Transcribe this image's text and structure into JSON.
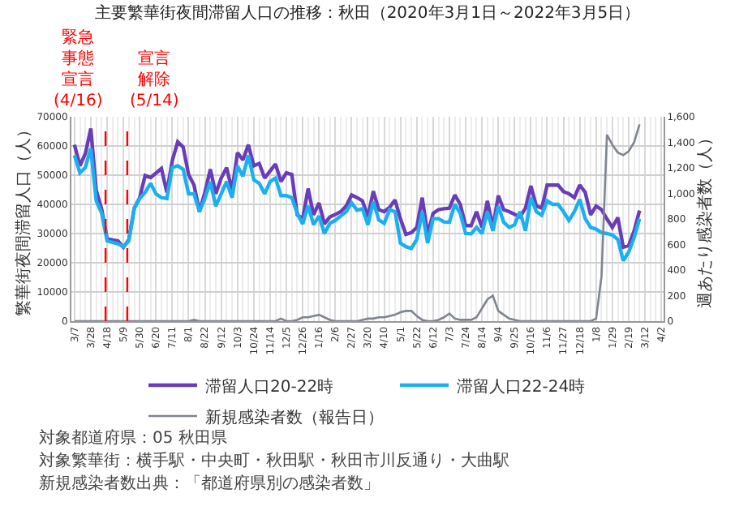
{
  "chart_data": {
    "type": "line",
    "title": "主要繁華街夜間滞留人口の推移：秋田（2020年3月1日～2022年3月5日）",
    "ylabel": "繁華街夜間滞留人口（人）",
    "y2label": "週あたり感染者数（人）",
    "x": [
      "2020-03-07",
      "2020-03-14",
      "2020-03-21",
      "2020-03-28",
      "2020-04-04",
      "2020-04-11",
      "2020-04-18",
      "2020-04-25",
      "2020-05-02",
      "2020-05-09",
      "2020-05-16",
      "2020-05-23",
      "2020-05-30",
      "2020-06-06",
      "2020-06-13",
      "2020-06-20",
      "2020-06-27",
      "2020-07-04",
      "2020-07-11",
      "2020-07-18",
      "2020-07-25",
      "2020-08-01",
      "2020-08-08",
      "2020-08-15",
      "2020-08-22",
      "2020-08-29",
      "2020-09-05",
      "2020-09-12",
      "2020-09-19",
      "2020-09-26",
      "2020-10-03",
      "2020-10-10",
      "2020-10-17",
      "2020-10-24",
      "2020-10-31",
      "2020-11-07",
      "2020-11-14",
      "2020-11-21",
      "2020-11-28",
      "2020-12-05",
      "2020-12-12",
      "2020-12-19",
      "2020-12-26",
      "2021-01-02",
      "2021-01-09",
      "2021-01-16",
      "2021-01-23",
      "2021-01-30",
      "2021-02-06",
      "2021-02-13",
      "2021-02-20",
      "2021-02-27",
      "2021-03-06",
      "2021-03-13",
      "2021-03-20",
      "2021-03-27",
      "2021-04-03",
      "2021-04-10",
      "2021-04-17",
      "2021-04-24",
      "2021-05-01",
      "2021-05-08",
      "2021-05-15",
      "2021-05-22",
      "2021-05-29",
      "2021-06-05",
      "2021-06-12",
      "2021-06-19",
      "2021-06-26",
      "2021-07-03",
      "2021-07-10",
      "2021-07-17",
      "2021-07-24",
      "2021-07-31",
      "2021-08-07",
      "2021-08-14",
      "2021-08-21",
      "2021-08-28",
      "2021-09-04",
      "2021-09-11",
      "2021-09-18",
      "2021-09-25",
      "2021-10-02",
      "2021-10-09",
      "2021-10-16",
      "2021-10-23",
      "2021-10-30",
      "2021-11-06",
      "2021-11-13",
      "2021-11-20",
      "2021-11-27",
      "2021-12-04",
      "2021-12-11",
      "2021-12-18",
      "2021-12-25",
      "2022-01-01",
      "2022-01-08",
      "2022-01-15",
      "2022-01-22",
      "2022-01-29",
      "2022-02-05",
      "2022-02-12",
      "2022-02-19",
      "2022-02-26",
      "2022-03-05"
    ],
    "series": [
      {
        "name": "滞留人口20-22時",
        "color": "#6a3db8",
        "values": [
          60400,
          53200,
          57400,
          66000,
          44800,
          38300,
          28200,
          27800,
          27500,
          25300,
          27900,
          38700,
          42300,
          49900,
          49200,
          50700,
          52300,
          44100,
          55000,
          61400,
          59600,
          50200,
          46600,
          37500,
          44100,
          52000,
          43600,
          49000,
          52600,
          44800,
          57700,
          55200,
          60400,
          53200,
          54000,
          49000,
          51400,
          53800,
          47800,
          50800,
          50200,
          36400,
          35100,
          45400,
          36400,
          40500,
          33300,
          35700,
          36500,
          37500,
          39400,
          43200,
          42300,
          41200,
          35700,
          44500,
          38200,
          37500,
          39000,
          41500,
          35000,
          29700,
          30300,
          32100,
          42300,
          29700,
          36900,
          38200,
          38500,
          38700,
          43200,
          40000,
          32700,
          32700,
          37500,
          32100,
          41200,
          32100,
          43000,
          38200,
          37500,
          36600,
          35700,
          38700,
          46300,
          39400,
          38700,
          46600,
          46600,
          46600,
          44400,
          43600,
          42300,
          46600,
          44100,
          36400,
          39400,
          38200,
          35000,
          32100,
          35500,
          25300,
          25900,
          30900,
          37900
        ]
      },
      {
        "name": "滞留人口22-24時",
        "color": "#1ab0f0",
        "values": [
          56800,
          50800,
          52600,
          59200,
          41200,
          37000,
          27500,
          27000,
          26500,
          25500,
          27500,
          38700,
          42000,
          44100,
          47200,
          43600,
          42300,
          42000,
          52600,
          53200,
          52000,
          43600,
          43600,
          37500,
          42000,
          47800,
          39400,
          43600,
          47800,
          42300,
          53200,
          49600,
          56800,
          48400,
          47200,
          43600,
          47800,
          49000,
          43000,
          43000,
          42300,
          36900,
          33300,
          39500,
          33000,
          36000,
          30000,
          33500,
          34500,
          36000,
          37500,
          40500,
          38000,
          38500,
          33000,
          41000,
          34700,
          33500,
          38200,
          37500,
          26700,
          25500,
          24900,
          28000,
          37500,
          26700,
          35100,
          35100,
          34000,
          33900,
          40000,
          36900,
          30000,
          29900,
          32100,
          30000,
          37500,
          30900,
          39400,
          33900,
          32100,
          33000,
          37500,
          30900,
          42300,
          37500,
          36300,
          41200,
          40000,
          40000,
          37500,
          34500,
          37500,
          41700,
          35100,
          32100,
          31500,
          30300,
          30000,
          29500,
          28000,
          20700,
          23700,
          28600,
          35100
        ]
      },
      {
        "name": "新規感染者数（報告日）",
        "color": "#7f8590",
        "axis": "y2",
        "values": [
          0,
          0,
          0,
          0,
          0,
          0,
          0,
          0,
          0,
          0,
          0,
          0,
          0,
          0,
          0,
          0,
          0,
          0,
          0,
          0,
          0,
          0,
          10,
          0,
          0,
          0,
          0,
          0,
          0,
          0,
          0,
          0,
          0,
          0,
          0,
          0,
          0,
          0,
          20,
          0,
          0,
          10,
          30,
          30,
          40,
          50,
          30,
          10,
          0,
          0,
          0,
          0,
          0,
          10,
          20,
          20,
          30,
          30,
          40,
          50,
          70,
          80,
          80,
          40,
          10,
          0,
          0,
          10,
          30,
          60,
          20,
          10,
          10,
          10,
          30,
          100,
          170,
          200,
          80,
          50,
          20,
          10,
          0,
          0,
          0,
          0,
          0,
          0,
          0,
          0,
          0,
          0,
          0,
          0,
          0,
          0,
          20,
          350,
          1460,
          1380,
          1320,
          1300,
          1330,
          1400,
          1540
        ]
      }
    ],
    "xlim": [
      "2020-03-03",
      "2022-04-05"
    ],
    "xticks": [
      {
        "value": "2020-03-07",
        "label": "3/7"
      },
      {
        "value": "2020-03-28",
        "label": "3/28"
      },
      {
        "value": "2020-04-18",
        "label": "4/18"
      },
      {
        "value": "2020-05-09",
        "label": "5/9"
      },
      {
        "value": "2020-05-30",
        "label": "5/30"
      },
      {
        "value": "2020-06-20",
        "label": "6/20"
      },
      {
        "value": "2020-07-11",
        "label": "7/11"
      },
      {
        "value": "2020-08-01",
        "label": "8/1"
      },
      {
        "value": "2020-08-22",
        "label": "8/22"
      },
      {
        "value": "2020-09-12",
        "label": "9/12"
      },
      {
        "value": "2020-10-03",
        "label": "10/3"
      },
      {
        "value": "2020-10-24",
        "label": "10/24"
      },
      {
        "value": "2020-11-14",
        "label": "11/14"
      },
      {
        "value": "2020-12-05",
        "label": "12/5"
      },
      {
        "value": "2020-12-26",
        "label": "12/26"
      },
      {
        "value": "2021-01-16",
        "label": "1/16"
      },
      {
        "value": "2021-02-06",
        "label": "2/6"
      },
      {
        "value": "2021-02-27",
        "label": "2/27"
      },
      {
        "value": "2021-03-20",
        "label": "3/20"
      },
      {
        "value": "2021-04-10",
        "label": "4/10"
      },
      {
        "value": "2021-05-01",
        "label": "5/1"
      },
      {
        "value": "2021-05-22",
        "label": "5/22"
      },
      {
        "value": "2021-06-12",
        "label": "6/12"
      },
      {
        "value": "2021-07-03",
        "label": "7/3"
      },
      {
        "value": "2021-07-24",
        "label": "7/24"
      },
      {
        "value": "2021-08-14",
        "label": "8/14"
      },
      {
        "value": "2021-09-04",
        "label": "9/4"
      },
      {
        "value": "2021-09-25",
        "label": "9/25"
      },
      {
        "value": "2021-10-16",
        "label": "10/16"
      },
      {
        "value": "2021-11-06",
        "label": "11/6"
      },
      {
        "value": "2021-11-27",
        "label": "11/27"
      },
      {
        "value": "2021-12-18",
        "label": "12/18"
      },
      {
        "value": "2022-01-08",
        "label": "1/8"
      },
      {
        "value": "2022-01-29",
        "label": "1/29"
      },
      {
        "value": "2022-02-19",
        "label": "2/19"
      },
      {
        "value": "2022-03-12",
        "label": "3/12"
      },
      {
        "value": "2022-04-02",
        "label": "4/2"
      }
    ],
    "ylim": [
      0,
      70000
    ],
    "yticks": [
      0,
      10000,
      20000,
      30000,
      40000,
      50000,
      60000,
      70000
    ],
    "y2lim": [
      0,
      1600
    ],
    "y2ticks": [
      0,
      200,
      400,
      600,
      800,
      {
        "value": 1000,
        "label": "1,000"
      },
      {
        "value": 1200,
        "label": "1,200"
      },
      {
        "value": 1400,
        "label": "1,400"
      },
      {
        "value": 1600,
        "label": "1,600"
      }
    ],
    "ref_lines": [
      {
        "axis": "x",
        "value": "2020-04-16",
        "label": "緊急事態宣言(4/16)",
        "color": "#ff0000",
        "line_style": "dashed"
      },
      {
        "axis": "x",
        "value": "2020-05-14",
        "label": "宣言解除(5/14)",
        "color": "#ff0000",
        "line_style": "dashed"
      }
    ],
    "annotations": [
      "対象都道府県：05 秋田県",
      "対象繁華街：横手駅・中央町・秋田駅・秋田市川反通り・大曲駅",
      "新規感染者数出典：「都道府県別の感染者数」"
    ],
    "grid": true,
    "legend": "bottom",
    "marker": "none",
    "line_style": "solid"
  }
}
